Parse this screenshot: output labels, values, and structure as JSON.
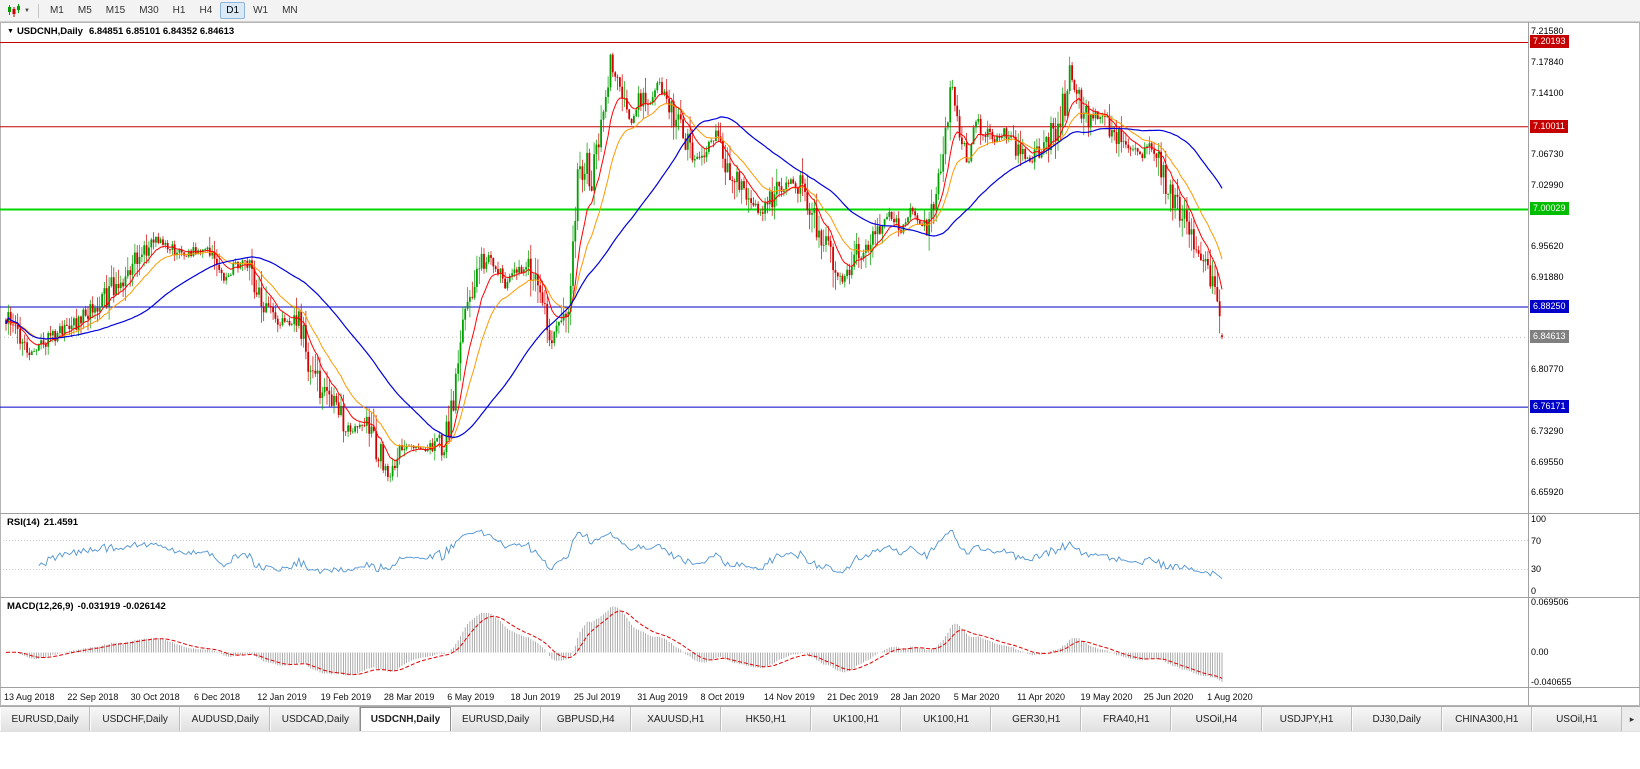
{
  "toolbar": {
    "chart_menu_caret": "▼",
    "timeframes": [
      {
        "label": "M1",
        "active": false
      },
      {
        "label": "M5",
        "active": false
      },
      {
        "label": "M15",
        "active": false
      },
      {
        "label": "M30",
        "active": false
      },
      {
        "label": "H1",
        "active": false
      },
      {
        "label": "H4",
        "active": false
      },
      {
        "label": "D1",
        "active": true
      },
      {
        "label": "W1",
        "active": false
      },
      {
        "label": "MN",
        "active": false
      }
    ]
  },
  "chart": {
    "collapse_marker": "▼",
    "symbol_title": "USDCNH,Daily",
    "ohlc_text": "6.84851 6.85101 6.84352 6.84613"
  },
  "price_axis": {
    "ticks": [
      {
        "label": "7.21580",
        "value": 7.2158
      },
      {
        "label": "7.17840",
        "value": 7.1784
      },
      {
        "label": "7.14100",
        "value": 7.141
      },
      {
        "label": "7.06730",
        "value": 7.0673
      },
      {
        "label": "7.02990",
        "value": 7.0299
      },
      {
        "label": "6.95620",
        "value": 6.9562
      },
      {
        "label": "6.91880",
        "value": 6.9188
      },
      {
        "label": "6.80770",
        "value": 6.8077
      },
      {
        "label": "6.73290",
        "value": 6.7329
      },
      {
        "label": "6.69550",
        "value": 6.6955
      },
      {
        "label": "6.65920",
        "value": 6.6592
      }
    ],
    "level_boxes": [
      {
        "label": "7.20193",
        "value": 7.20193,
        "bg": "#c40000"
      },
      {
        "label": "7.10011",
        "value": 7.10011,
        "bg": "#c40000"
      },
      {
        "label": "7.00029",
        "value": 7.00029,
        "bg": "#00bd00"
      },
      {
        "label": "6.88250",
        "value": 6.8825,
        "bg": "#0000c8"
      },
      {
        "label": "6.76171",
        "value": 6.76171,
        "bg": "#0000c8"
      }
    ],
    "current_price_box": {
      "label": "6.84613",
      "value": 6.84613,
      "bg": "#808080"
    }
  },
  "rsi_panel": {
    "name": "RSI(14)",
    "value": "21.4591",
    "ticks": [
      {
        "label": "100",
        "value": 100
      },
      {
        "label": "70",
        "value": 70
      },
      {
        "label": "30",
        "value": 30
      },
      {
        "label": "0",
        "value": 0
      }
    ]
  },
  "macd_panel": {
    "name": "MACD(12,26,9)",
    "values": "-0.031919 -0.026142",
    "ticks": [
      {
        "label": "0.069506",
        "value": 0.069506
      },
      {
        "label": "0.00",
        "value": 0
      },
      {
        "label": "-0.040655",
        "value": -0.040655
      }
    ]
  },
  "tabbar": {
    "tabs": [
      {
        "label": "EURUSD,Daily",
        "active": false
      },
      {
        "label": "USDCHF,Daily",
        "active": false
      },
      {
        "label": "AUDUSD,Daily",
        "active": false
      },
      {
        "label": "USDCAD,Daily",
        "active": false
      },
      {
        "label": "USDCNH,Daily",
        "active": true
      },
      {
        "label": "EURUSD,Daily",
        "active": false
      },
      {
        "label": "GBPUSD,H4",
        "active": false
      },
      {
        "label": "XAUUSD,H1",
        "active": false
      },
      {
        "label": "HK50,H1",
        "active": false
      },
      {
        "label": "UK100,H1",
        "active": false
      },
      {
        "label": "UK100,H1",
        "active": false
      },
      {
        "label": "GER30,H1",
        "active": false
      },
      {
        "label": "FRA40,H1",
        "active": false
      },
      {
        "label": "USOil,H4",
        "active": false
      },
      {
        "label": "USDJPY,H1",
        "active": false
      },
      {
        "label": "DJ30,Daily",
        "active": false
      },
      {
        "label": "CHINA300,H1",
        "active": false
      },
      {
        "label": "USOil,H1",
        "active": false
      }
    ],
    "scroll_arrow": "▸"
  },
  "chart_data": {
    "type": "candlestick",
    "symbol": "USDCNH",
    "timeframe": "Daily",
    "title": "USDCNH,Daily",
    "last_ohlc": {
      "open": 6.84851,
      "high": 6.85101,
      "low": 6.84352,
      "close": 6.84613
    },
    "visible_price_range": [
      6.6592,
      7.2158
    ],
    "candle_count": 520,
    "time_labels": [
      "13 Aug 2018",
      "22 Sep 2018",
      "30 Oct 2018",
      "6 Dec 2018",
      "12 Jan 2019",
      "19 Feb 2019",
      "28 Mar 2019",
      "6 May 2019",
      "18 Jun 2019",
      "25 Jul 2019",
      "31 Aug 2019",
      "8 Oct 2019",
      "14 Nov 2019",
      "21 Dec 2019",
      "28 Jan 2020",
      "5 Mar 2020",
      "11 Apr 2020",
      "19 May 2020",
      "25 Jun 2020",
      "1 Aug 2020"
    ],
    "colors": {
      "up": "#00a000",
      "down": "#d40000",
      "ma_fast": "#ff0000",
      "ma_mid": "#ff9900",
      "ma_slow": "#0000dd",
      "rsi": "#4f93d2",
      "macd_hist": "#9a9a9a",
      "macd_signal": "#e00000",
      "level_red": "#c40000",
      "level_green": "#00d800",
      "level_blue": "#0000c8"
    },
    "horizontal_lines": [
      {
        "price": 7.20193,
        "color": "#c40000",
        "width": 1,
        "role": "resistance"
      },
      {
        "price": 7.10011,
        "color": "#c40000",
        "width": 1,
        "role": "resistance"
      },
      {
        "price": 7.00029,
        "color": "#00d800",
        "width": 2,
        "role": "pivot"
      },
      {
        "price": 6.8825,
        "color": "#0000c8",
        "width": 1,
        "role": "support"
      },
      {
        "price": 6.76171,
        "color": "#0000c8",
        "width": 1,
        "role": "support"
      }
    ],
    "moving_averages": [
      {
        "type": "ema",
        "period": 10,
        "color": "#ff0000"
      },
      {
        "type": "ema",
        "period": 21,
        "color": "#ff9900"
      },
      {
        "type": "sma",
        "period": 55,
        "color": "#0000dd"
      }
    ],
    "price_path_anchors": [
      [
        0,
        6.87
      ],
      [
        0.02,
        6.83
      ],
      [
        0.044,
        6.85
      ],
      [
        0.073,
        6.88
      ],
      [
        0.102,
        6.93
      ],
      [
        0.123,
        6.965
      ],
      [
        0.147,
        6.945
      ],
      [
        0.164,
        6.955
      ],
      [
        0.18,
        6.92
      ],
      [
        0.197,
        6.94
      ],
      [
        0.209,
        6.89
      ],
      [
        0.225,
        6.862
      ],
      [
        0.242,
        6.868
      ],
      [
        0.25,
        6.8
      ],
      [
        0.266,
        6.77
      ],
      [
        0.283,
        6.73
      ],
      [
        0.295,
        6.745
      ],
      [
        0.308,
        6.7
      ],
      [
        0.316,
        6.676
      ],
      [
        0.324,
        6.72
      ],
      [
        0.34,
        6.71
      ],
      [
        0.361,
        6.72
      ],
      [
        0.369,
        6.78
      ],
      [
        0.377,
        6.88
      ],
      [
        0.386,
        6.92
      ],
      [
        0.398,
        6.945
      ],
      [
        0.41,
        6.91
      ],
      [
        0.423,
        6.93
      ],
      [
        0.435,
        6.925
      ],
      [
        0.443,
        6.87
      ],
      [
        0.449,
        6.847
      ],
      [
        0.456,
        6.875
      ],
      [
        0.462,
        6.882
      ],
      [
        0.465,
        6.92
      ],
      [
        0.469,
        7.02
      ],
      [
        0.472,
        7.05
      ],
      [
        0.477,
        7.06
      ],
      [
        0.482,
        7.03
      ],
      [
        0.487,
        7.09
      ],
      [
        0.492,
        7.13
      ],
      [
        0.497,
        7.175
      ],
      [
        0.503,
        7.16
      ],
      [
        0.509,
        7.12
      ],
      [
        0.515,
        7.1
      ],
      [
        0.521,
        7.14
      ],
      [
        0.53,
        7.13
      ],
      [
        0.536,
        7.16
      ],
      [
        0.544,
        7.12
      ],
      [
        0.553,
        7.11
      ],
      [
        0.562,
        7.07
      ],
      [
        0.571,
        7.06
      ],
      [
        0.583,
        7.09
      ],
      [
        0.595,
        7.04
      ],
      [
        0.608,
        7.015
      ],
      [
        0.62,
        6.995
      ],
      [
        0.632,
        7.02
      ],
      [
        0.645,
        7.035
      ],
      [
        0.657,
        7.025
      ],
      [
        0.669,
        6.975
      ],
      [
        0.679,
        6.935
      ],
      [
        0.688,
        6.912
      ],
      [
        0.696,
        6.93
      ],
      [
        0.706,
        6.96
      ],
      [
        0.719,
        6.97
      ],
      [
        0.727,
        6.995
      ],
      [
        0.735,
        6.975
      ],
      [
        0.745,
        7.0
      ],
      [
        0.756,
        6.98
      ],
      [
        0.764,
        7.02
      ],
      [
        0.772,
        7.09
      ],
      [
        0.778,
        7.15
      ],
      [
        0.784,
        7.1
      ],
      [
        0.791,
        7.06
      ],
      [
        0.797,
        7.11
      ],
      [
        0.805,
        7.09
      ],
      [
        0.813,
        7.085
      ],
      [
        0.824,
        7.095
      ],
      [
        0.831,
        7.07
      ],
      [
        0.842,
        7.06
      ],
      [
        0.854,
        7.075
      ],
      [
        0.863,
        7.1
      ],
      [
        0.871,
        7.13
      ],
      [
        0.875,
        7.178
      ],
      [
        0.877,
        7.155
      ],
      [
        0.883,
        7.13
      ],
      [
        0.891,
        7.105
      ],
      [
        0.9,
        7.12
      ],
      [
        0.909,
        7.095
      ],
      [
        0.92,
        7.08
      ],
      [
        0.932,
        7.065
      ],
      [
        0.942,
        7.075
      ],
      [
        0.951,
        7.05
      ],
      [
        0.959,
        7.01
      ],
      [
        0.967,
        6.995
      ],
      [
        0.975,
        6.97
      ],
      [
        0.983,
        6.955
      ],
      [
        0.988,
        6.93
      ],
      [
        0.993,
        6.915
      ],
      [
        0.997,
        6.87
      ],
      [
        1,
        6.846
      ]
    ],
    "rsi": {
      "period": 14,
      "current": 21.4591,
      "levels": [
        70,
        30
      ],
      "scale": [
        0,
        100
      ]
    },
    "macd": {
      "fast": 12,
      "slow": 26,
      "signal_period": 9,
      "current_macd": -0.031919,
      "current_signal": -0.026142,
      "scale": [
        -0.040655,
        0.069506
      ]
    }
  }
}
